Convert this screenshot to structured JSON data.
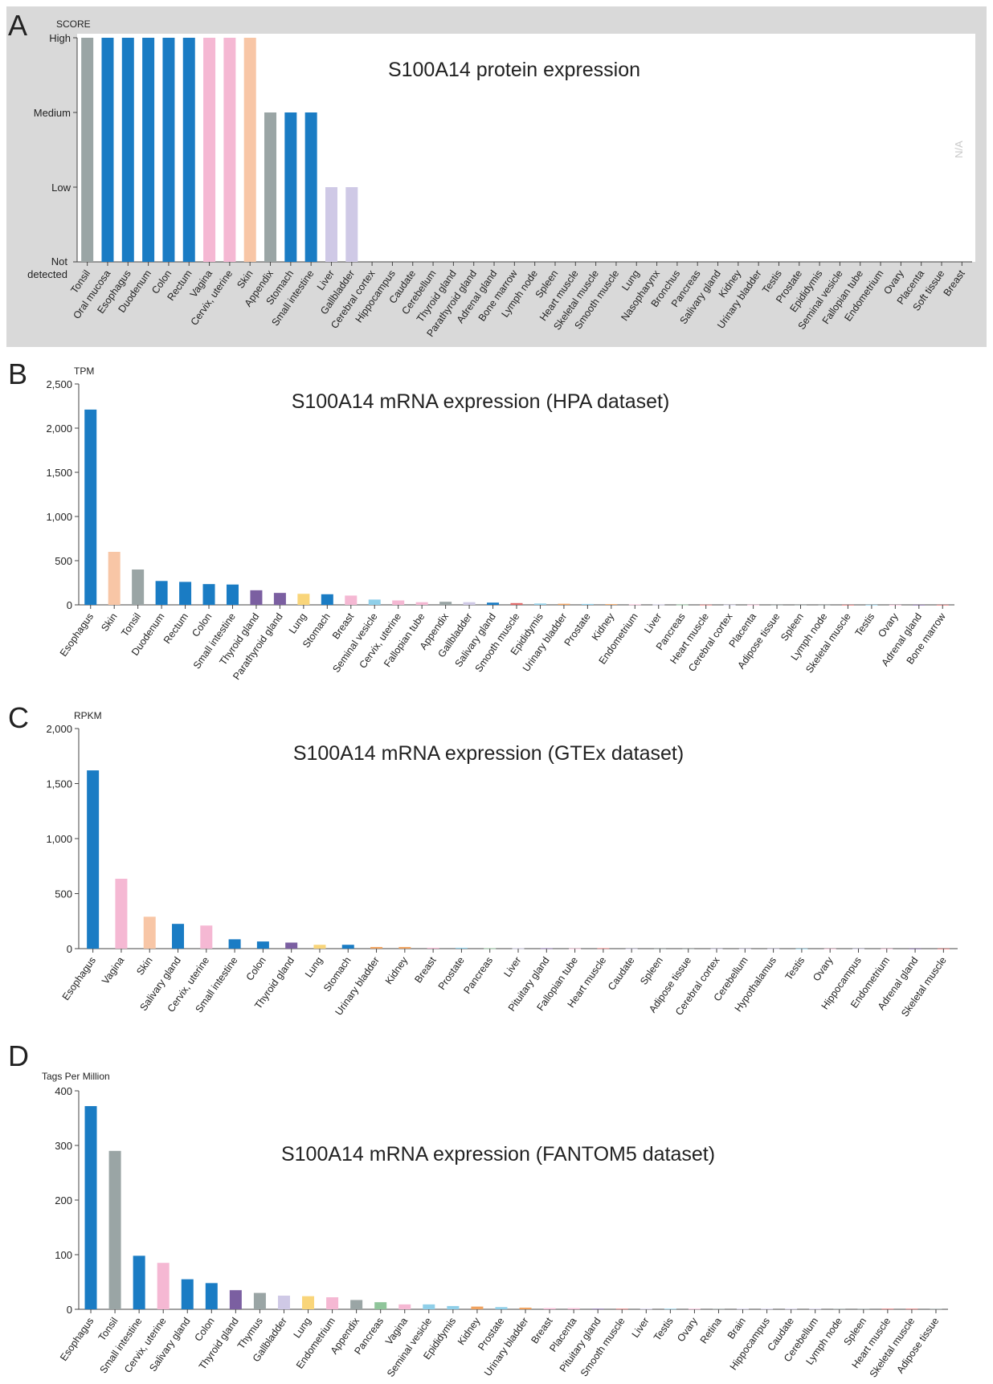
{
  "colors": {
    "background": "#ffffff",
    "panel_a_background": "#d9d9d9",
    "grey": "#9aa5a5",
    "blue": "#1a7cc4",
    "pink": "#f5b8d3",
    "peach": "#f8c6a6",
    "lavender": "#cfc9e6",
    "purple": "#7b5fa1",
    "yellow": "#f9d57a",
    "light_blue": "#8fcfe9",
    "green": "#8fc59a",
    "red": "#e06b6b",
    "orange": "#f0a25f"
  },
  "panels": {
    "a": "A",
    "b": "B",
    "c": "C",
    "d": "D"
  },
  "chart_data": [
    {
      "type": "bar",
      "panel": "A",
      "title": "S100A14 protein expression",
      "ylabel": "SCORE",
      "yscale": "ordinal",
      "ylim": [
        0,
        3
      ],
      "yticks": [
        {
          "value": 0,
          "label": "Not detected"
        },
        {
          "value": 1,
          "label": "Low"
        },
        {
          "value": 2,
          "label": "Medium"
        },
        {
          "value": 3,
          "label": "High"
        }
      ],
      "annotation": "N/A",
      "categories": [
        "Tonsil",
        "Oral mucosa",
        "Esophagus",
        "Duodenum",
        "Colon",
        "Rectum",
        "Vagina",
        "Cervix, uterine",
        "Skin",
        "Appendix",
        "Stomach",
        "Small intestine",
        "Liver",
        "Gallbladder",
        "Cerebral cortex",
        "Hippocampus",
        "Caudate",
        "Cerebellum",
        "Thyroid gland",
        "Parathyroid gland",
        "Adrenal gland",
        "Bone marrow",
        "Lymph node",
        "Spleen",
        "Heart muscle",
        "Skeletal muscle",
        "Smooth muscle",
        "Lung",
        "Nasopharynx",
        "Bronchus",
        "Pancreas",
        "Salivary gland",
        "Kidney",
        "Urinary bladder",
        "Testis",
        "Prostate",
        "Epididymis",
        "Seminal vesicle",
        "Fallopian tube",
        "Endometrium",
        "Ovary",
        "Placenta",
        "Soft tissue",
        "Breast"
      ],
      "values": [
        3,
        3,
        3,
        3,
        3,
        3,
        3,
        3,
        3,
        2,
        2,
        2,
        1,
        1,
        0,
        0,
        0,
        0,
        0,
        0,
        0,
        0,
        0,
        0,
        0,
        0,
        0,
        0,
        0,
        0,
        0,
        0,
        0,
        0,
        0,
        0,
        0,
        0,
        0,
        0,
        0,
        0,
        0,
        0
      ],
      "bar_colors": [
        "grey",
        "blue",
        "blue",
        "blue",
        "blue",
        "blue",
        "pink",
        "pink",
        "peach",
        "grey",
        "blue",
        "blue",
        "lavender",
        "lavender",
        "lavender",
        "lavender",
        "lavender",
        "lavender",
        "purple",
        "purple",
        "purple",
        "red",
        "grey",
        "grey",
        "red",
        "red",
        "red",
        "yellow",
        "yellow",
        "yellow",
        "green",
        "blue",
        "orange",
        "orange",
        "light_blue",
        "light_blue",
        "light_blue",
        "light_blue",
        "pink",
        "pink",
        "pink",
        "pink",
        "grey",
        "pink"
      ]
    },
    {
      "type": "bar",
      "panel": "B",
      "title": "S100A14 mRNA expression (HPA dataset)",
      "ylabel": "TPM",
      "ylim": [
        0,
        2500
      ],
      "yticks": [
        0,
        500,
        1000,
        1500,
        2000,
        2500
      ],
      "ytick_labels": [
        "0",
        "500",
        "1,000",
        "1,500",
        "2,000",
        "2,500"
      ],
      "categories": [
        "Esophagus",
        "Skin",
        "Tonsil",
        "Duodenum",
        "Rectum",
        "Colon",
        "Small intestine",
        "Thyroid gland",
        "Parathyroid gland",
        "Lung",
        "Stomach",
        "Breast",
        "Seminal vesicle",
        "Cervix, uterine",
        "Fallopian tube",
        "Appendix",
        "Gallbladder",
        "Salivary gland",
        "Smooth muscle",
        "Epididymis",
        "Urinary bladder",
        "Prostate",
        "Kidney",
        "Endometrium",
        "Liver",
        "Pancreas",
        "Heart muscle",
        "Cerebral cortex",
        "Placenta",
        "Adipose tissue",
        "Spleen",
        "Lymph node",
        "Skeletal muscle",
        "Testis",
        "Ovary",
        "Adrenal gland",
        "Bone marrow"
      ],
      "values": [
        2210,
        600,
        400,
        270,
        260,
        235,
        230,
        165,
        135,
        125,
        120,
        105,
        60,
        50,
        30,
        35,
        30,
        25,
        20,
        15,
        12,
        10,
        8,
        5,
        4,
        3,
        2,
        2,
        2,
        1,
        1,
        1,
        1,
        1,
        1,
        1,
        1
      ],
      "bar_colors": [
        "blue",
        "peach",
        "grey",
        "blue",
        "blue",
        "blue",
        "blue",
        "purple",
        "purple",
        "yellow",
        "blue",
        "pink",
        "light_blue",
        "pink",
        "pink",
        "grey",
        "lavender",
        "blue",
        "red",
        "light_blue",
        "orange",
        "light_blue",
        "orange",
        "pink",
        "lavender",
        "green",
        "red",
        "lavender",
        "pink",
        "grey",
        "grey",
        "grey",
        "red",
        "light_blue",
        "pink",
        "purple",
        "red"
      ]
    },
    {
      "type": "bar",
      "panel": "C",
      "title": "S100A14 mRNA expression (GTEx dataset)",
      "ylabel": "RPKM",
      "ylim": [
        0,
        2000
      ],
      "yticks": [
        0,
        500,
        1000,
        1500,
        2000
      ],
      "ytick_labels": [
        "0",
        "500",
        "1,000",
        "1,500",
        "2,000"
      ],
      "categories": [
        "Esophagus",
        "Vagina",
        "Skin",
        "Salivary gland",
        "Cervix, uterine",
        "Small intestine",
        "Colon",
        "Thyroid gland",
        "Lung",
        "Stomach",
        "Urinary bladder",
        "Kidney",
        "Breast",
        "Prostate",
        "Pancreas",
        "Liver",
        "Pituitary gland",
        "Fallopian tube",
        "Heart muscle",
        "Caudate",
        "Spleen",
        "Adipose tissue",
        "Cerebral cortex",
        "Cerebellum",
        "Hypothalamus",
        "Testis",
        "Ovary",
        "Hippocampus",
        "Endometrium",
        "Adrenal gland",
        "Skeletal muscle"
      ],
      "values": [
        1620,
        635,
        290,
        225,
        210,
        85,
        65,
        55,
        35,
        35,
        15,
        15,
        8,
        8,
        3,
        3,
        3,
        2,
        4,
        1,
        1,
        1,
        1,
        1,
        1,
        1,
        1,
        1,
        1,
        1,
        1
      ],
      "bar_colors": [
        "blue",
        "pink",
        "peach",
        "blue",
        "pink",
        "blue",
        "blue",
        "purple",
        "yellow",
        "blue",
        "orange",
        "orange",
        "pink",
        "light_blue",
        "green",
        "lavender",
        "purple",
        "pink",
        "red",
        "lavender",
        "grey",
        "grey",
        "lavender",
        "lavender",
        "lavender",
        "light_blue",
        "pink",
        "lavender",
        "pink",
        "purple",
        "red"
      ]
    },
    {
      "type": "bar",
      "panel": "D",
      "title": "S100A14 mRNA expression (FANTOM5 dataset)",
      "ylabel": "Tags Per Million",
      "ylim": [
        0,
        400
      ],
      "yticks": [
        0,
        100,
        200,
        300,
        400
      ],
      "ytick_labels": [
        "0",
        "100",
        "200",
        "300",
        "400"
      ],
      "categories": [
        "Esophagus",
        "Tonsil",
        "Small intestine",
        "Cervix, uterine",
        "Salivary gland",
        "Colon",
        "Thyroid gland",
        "Thymus",
        "Gallbladder",
        "Lung",
        "Endometrium",
        "Appendix",
        "Pancreas",
        "Vagina",
        "Seminal vesicle",
        "Epididymis",
        "Kidney",
        "Prostate",
        "Urinary bladder",
        "Breast",
        "Placenta",
        "Pituitary gland",
        "Smooth muscle",
        "Liver",
        "Testis",
        "Ovary",
        "Retina",
        "Brain",
        "Hippocampus",
        "Caudate",
        "Cerebellum",
        "Lymph node",
        "Spleen",
        "Heart muscle",
        "Skeletal muscle",
        "Adipose tissue"
      ],
      "values": [
        372,
        290,
        98,
        85,
        55,
        48,
        35,
        30,
        25,
        24,
        22,
        17,
        13,
        9,
        9,
        6,
        5,
        4,
        3,
        2,
        2,
        1,
        1,
        1,
        1,
        1,
        1,
        1,
        1,
        1,
        1,
        1,
        1,
        1,
        1,
        1
      ],
      "bar_colors": [
        "blue",
        "grey",
        "blue",
        "pink",
        "blue",
        "blue",
        "purple",
        "grey",
        "lavender",
        "yellow",
        "pink",
        "grey",
        "green",
        "pink",
        "light_blue",
        "light_blue",
        "orange",
        "light_blue",
        "orange",
        "pink",
        "pink",
        "purple",
        "red",
        "lavender",
        "light_blue",
        "pink",
        "grey",
        "lavender",
        "lavender",
        "lavender",
        "lavender",
        "grey",
        "grey",
        "red",
        "red",
        "grey"
      ]
    }
  ]
}
